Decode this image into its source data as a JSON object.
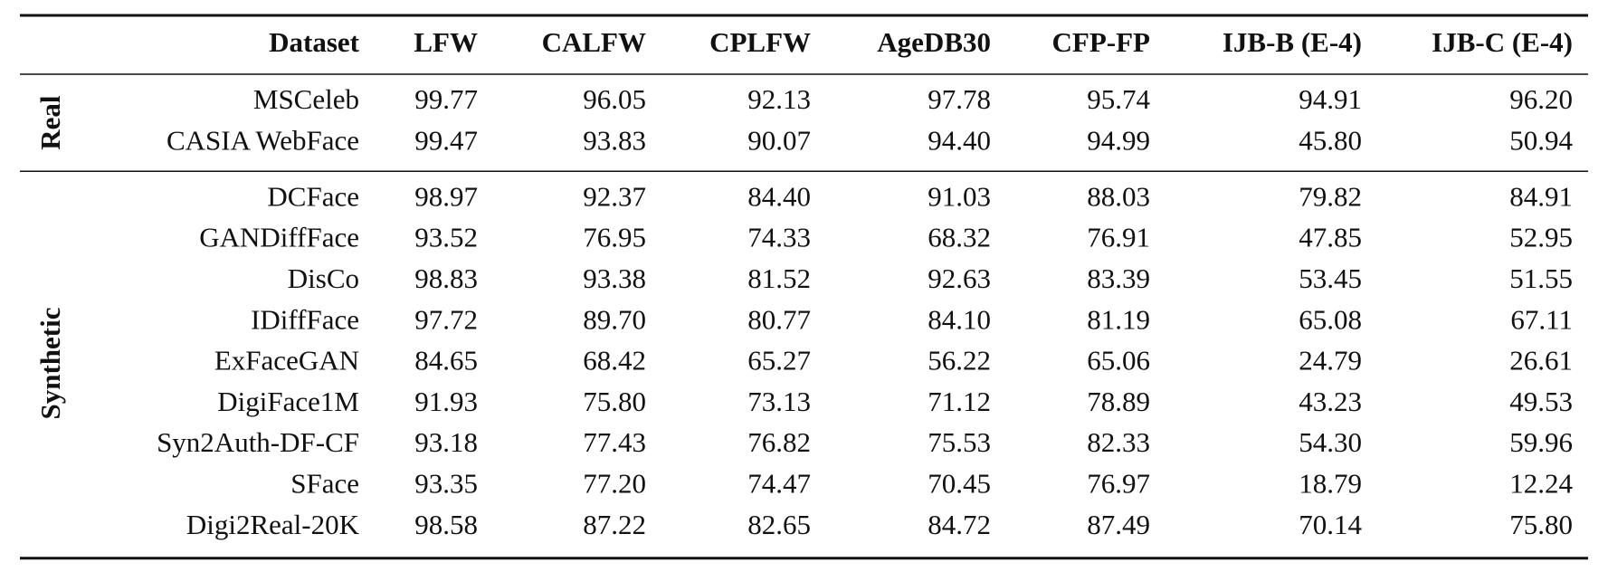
{
  "table": {
    "header": [
      "Dataset",
      "LFW",
      "CALFW",
      "CPLFW",
      "AgeDB30",
      "CFP-FP",
      "IJB-B (E-4)",
      "IJB-C (E-4)"
    ],
    "groups": [
      {
        "label": "Real",
        "rows": [
          [
            "MSCeleb",
            "99.77",
            "96.05",
            "92.13",
            "97.78",
            "95.74",
            "94.91",
            "96.20"
          ],
          [
            "CASIA WebFace",
            "99.47",
            "93.83",
            "90.07",
            "94.40",
            "94.99",
            "45.80",
            "50.94"
          ]
        ]
      },
      {
        "label": "Synthetic",
        "rows": [
          [
            "DCFace",
            "98.97",
            "92.37",
            "84.40",
            "91.03",
            "88.03",
            "79.82",
            "84.91"
          ],
          [
            "GANDiffFace",
            "93.52",
            "76.95",
            "74.33",
            "68.32",
            "76.91",
            "47.85",
            "52.95"
          ],
          [
            "DisCo",
            "98.83",
            "93.38",
            "81.52",
            "92.63",
            "83.39",
            "53.45",
            "51.55"
          ],
          [
            "IDiffFace",
            "97.72",
            "89.70",
            "80.77",
            "84.10",
            "81.19",
            "65.08",
            "67.11"
          ],
          [
            "ExFaceGAN",
            "84.65",
            "68.42",
            "65.27",
            "56.22",
            "65.06",
            "24.79",
            "26.61"
          ],
          [
            "DigiFace1M",
            "91.93",
            "75.80",
            "73.13",
            "71.12",
            "78.89",
            "43.23",
            "49.53"
          ],
          [
            "Syn2Auth-DF-CF",
            "93.18",
            "77.43",
            "76.82",
            "75.53",
            "82.33",
            "54.30",
            "59.96"
          ],
          [
            "SFace",
            "93.35",
            "77.20",
            "74.47",
            "70.45",
            "76.97",
            "18.79",
            "12.24"
          ],
          [
            "Digi2Real-20K",
            "98.58",
            "87.22",
            "82.65",
            "84.72",
            "87.49",
            "70.14",
            "75.80"
          ]
        ]
      }
    ]
  }
}
